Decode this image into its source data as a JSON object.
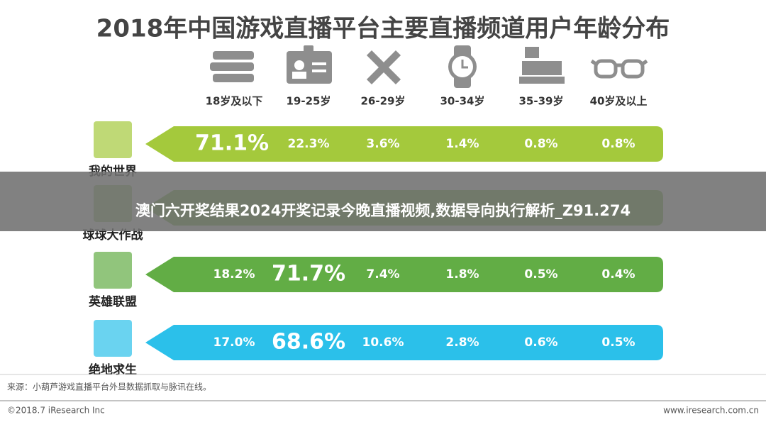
{
  "title": "2018年中国游戏直播平台主要直播频道用户年龄分布",
  "columns": [
    "18岁及以下",
    "19-25岁",
    "26-29岁",
    "30-34岁",
    "35-39岁",
    "40岁及以上"
  ],
  "rows": [
    {
      "name": "我的世界",
      "color": "#a4c93c",
      "values": [
        "71.1%",
        "22.3%",
        "3.6%",
        "1.4%",
        "0.8%",
        "0.8%"
      ]
    },
    {
      "name": "球球大作战",
      "color": "#7fb843"
    },
    {
      "name": "英雄联盟",
      "color": "#62ad45",
      "values": [
        "18.2%",
        "71.7%",
        "7.4%",
        "1.8%",
        "0.5%",
        "0.4%"
      ]
    },
    {
      "name": "绝地求生",
      "color": "#2bc0ea",
      "values": [
        "17.0%",
        "68.6%",
        "10.6%",
        "2.8%",
        "0.6%",
        "0.5%"
      ]
    }
  ],
  "banner": "澳门六开奖结果2024开奖记录今晚直播视频,数据导向执行解析_Z91.274",
  "source": "来源：小葫芦游戏直播平台外显数据抓取与脉讯在线。",
  "footer": {
    "left": "©2018.7 iResearch Inc",
    "right": "www.iresearch.com.cn"
  }
}
